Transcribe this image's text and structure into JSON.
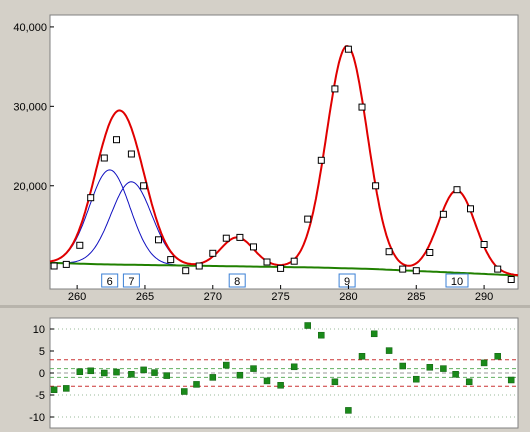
{
  "chart_data": [
    {
      "type": "line",
      "panel": "main",
      "xlim": [
        258,
        292.5
      ],
      "ylim": [
        7000,
        41500
      ],
      "x_ticks": [
        260,
        265,
        270,
        275,
        280,
        285,
        290
      ],
      "y_ticks": [
        20000,
        30000,
        40000
      ],
      "y_tick_labels": [
        "20,000",
        "30,000",
        "40,000"
      ],
      "grid": false,
      "colors": {
        "fit": "#e00000",
        "baseline": "#208000",
        "components": "#1010c0",
        "points": "#000000",
        "peak_label_box": "#3a7fd5",
        "plot_bg": "#ffffff",
        "window_bg": "#d4d0c8"
      },
      "points": [
        {
          "x": 258.3,
          "y": 9900
        },
        {
          "x": 259.2,
          "y": 10100
        },
        {
          "x": 260.2,
          "y": 12500
        },
        {
          "x": 261.0,
          "y": 18500
        },
        {
          "x": 262.0,
          "y": 23500
        },
        {
          "x": 262.9,
          "y": 25800
        },
        {
          "x": 264.0,
          "y": 24000
        },
        {
          "x": 264.9,
          "y": 20000
        },
        {
          "x": 266.0,
          "y": 13200
        },
        {
          "x": 266.9,
          "y": 10700
        },
        {
          "x": 268.0,
          "y": 9300
        },
        {
          "x": 269.0,
          "y": 9900
        },
        {
          "x": 270.0,
          "y": 11500
        },
        {
          "x": 271.0,
          "y": 13400
        },
        {
          "x": 272.0,
          "y": 13500
        },
        {
          "x": 273.0,
          "y": 12300
        },
        {
          "x": 274.0,
          "y": 10400
        },
        {
          "x": 275.0,
          "y": 9600
        },
        {
          "x": 276.0,
          "y": 10500
        },
        {
          "x": 277.0,
          "y": 15800
        },
        {
          "x": 278.0,
          "y": 23200
        },
        {
          "x": 279.0,
          "y": 32200
        },
        {
          "x": 280.0,
          "y": 37200
        },
        {
          "x": 281.0,
          "y": 29900
        },
        {
          "x": 282.0,
          "y": 20000
        },
        {
          "x": 283.0,
          "y": 11700
        },
        {
          "x": 284.0,
          "y": 9500
        },
        {
          "x": 285.0,
          "y": 9300
        },
        {
          "x": 286.0,
          "y": 11600
        },
        {
          "x": 287.0,
          "y": 16400
        },
        {
          "x": 288.0,
          "y": 19500
        },
        {
          "x": 289.0,
          "y": 17100
        },
        {
          "x": 290.0,
          "y": 12600
        },
        {
          "x": 291.0,
          "y": 9500
        },
        {
          "x": 292.0,
          "y": 8200
        }
      ],
      "peaks": [
        {
          "label": "6",
          "center": 262.4,
          "height": 22000,
          "width": 1.5,
          "fit": "combined"
        },
        {
          "label": "7",
          "center": 264.0,
          "height": 20500,
          "width": 1.5,
          "fit": "combined"
        },
        {
          "label": "8",
          "center": 271.8,
          "height": 13500,
          "width": 1.2,
          "fit": "single"
        },
        {
          "label": "9",
          "center": 279.9,
          "height": 37600,
          "width": 1.5,
          "fit": "single"
        },
        {
          "label": "10",
          "center": 288.0,
          "height": 19400,
          "width": 1.35,
          "fit": "single"
        }
      ],
      "baseline": [
        {
          "x": 258,
          "y": 10300
        },
        {
          "x": 262,
          "y": 10100
        },
        {
          "x": 266,
          "y": 10000
        },
        {
          "x": 270,
          "y": 9900
        },
        {
          "x": 274,
          "y": 9800
        },
        {
          "x": 278,
          "y": 9700
        },
        {
          "x": 282,
          "y": 9500
        },
        {
          "x": 286,
          "y": 9200
        },
        {
          "x": 290,
          "y": 8900
        },
        {
          "x": 292.5,
          "y": 8700
        }
      ]
    },
    {
      "type": "scatter",
      "panel": "residuals",
      "xlim": [
        258,
        292.5
      ],
      "ylim": [
        -12.5,
        12.5
      ],
      "y_ticks": [
        10,
        5,
        0,
        -5,
        -10
      ],
      "y_tick_labels": [
        "10",
        "5",
        "0",
        "-5",
        "-10"
      ],
      "reference_lines": [
        {
          "y": 10,
          "style": "dotted",
          "color": "#9ab89a"
        },
        {
          "y": 3,
          "style": "dashed",
          "color": "#cc3333"
        },
        {
          "y": 1,
          "style": "dashed",
          "color": "#62b062"
        },
        {
          "y": 0,
          "style": "dashed",
          "color": "#9a9a9a"
        },
        {
          "y": -1,
          "style": "dashed",
          "color": "#62b062"
        },
        {
          "y": -3,
          "style": "dashed",
          "color": "#cc3333"
        },
        {
          "y": -5,
          "style": "dotted",
          "color": "#9ab89a"
        },
        {
          "y": -10,
          "style": "dotted",
          "color": "#9ab89a"
        }
      ],
      "marker_color": "#1a8a1a",
      "points": [
        {
          "x": 258.3,
          "y": -3.8
        },
        {
          "x": 259.2,
          "y": -3.5
        },
        {
          "x": 260.2,
          "y": 0.3
        },
        {
          "x": 261.0,
          "y": 0.5
        },
        {
          "x": 262.0,
          "y": 0.0
        },
        {
          "x": 262.9,
          "y": 0.2
        },
        {
          "x": 264.0,
          "y": -0.3
        },
        {
          "x": 264.9,
          "y": 0.7
        },
        {
          "x": 265.7,
          "y": 0.1
        },
        {
          "x": 266.6,
          "y": -0.6
        },
        {
          "x": 267.9,
          "y": -4.2
        },
        {
          "x": 268.8,
          "y": -2.6
        },
        {
          "x": 270.0,
          "y": -1.0
        },
        {
          "x": 271.0,
          "y": 1.8
        },
        {
          "x": 272.0,
          "y": -0.5
        },
        {
          "x": 273.0,
          "y": 1.0
        },
        {
          "x": 274.0,
          "y": -1.8
        },
        {
          "x": 275.0,
          "y": -2.8
        },
        {
          "x": 276.0,
          "y": 1.4
        },
        {
          "x": 277.0,
          "y": 10.8
        },
        {
          "x": 278.0,
          "y": 8.6
        },
        {
          "x": 279.0,
          "y": -2.0
        },
        {
          "x": 280.0,
          "y": -8.5
        },
        {
          "x": 281.0,
          "y": 3.8
        },
        {
          "x": 281.9,
          "y": 8.9
        },
        {
          "x": 283.0,
          "y": 5.1
        },
        {
          "x": 284.0,
          "y": 1.6
        },
        {
          "x": 285.0,
          "y": -1.4
        },
        {
          "x": 286.0,
          "y": 1.3
        },
        {
          "x": 287.0,
          "y": 1.0
        },
        {
          "x": 287.9,
          "y": -0.3
        },
        {
          "x": 288.9,
          "y": -2.0
        },
        {
          "x": 290.0,
          "y": 2.3
        },
        {
          "x": 291.0,
          "y": 3.8
        },
        {
          "x": 292.0,
          "y": -1.6
        }
      ]
    }
  ]
}
